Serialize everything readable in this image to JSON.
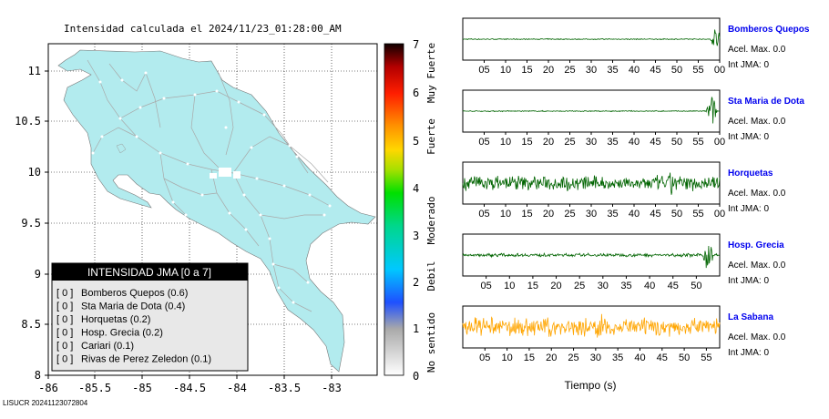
{
  "map": {
    "title": "Intensidad calculada el 2024/11/23_01:28:00_AM",
    "x_ticks": [
      "-86",
      "-85.5",
      "-85",
      "-84.5",
      "-84",
      "-83.5",
      "-83"
    ],
    "y_ticks": [
      "11",
      "10.5",
      "10",
      "9.5",
      "9",
      "8.5",
      "8"
    ],
    "land_color": "#b2ebee"
  },
  "colorbar": {
    "ticks": [
      "7",
      "6",
      "5",
      "4",
      "3",
      "2",
      "1",
      "0"
    ],
    "labels": [
      "Muy Fuerte",
      "Fuerte",
      "Moderado",
      "Debil",
      "No sentido"
    ]
  },
  "legend": {
    "title": "INTENSIDAD JMA [0 a 7]",
    "items": [
      {
        "level": "[ 0 ]",
        "name": "Bomberos Quepos (0.6)"
      },
      {
        "level": "[ 0 ]",
        "name": "Sta Maria de Dota (0.4)"
      },
      {
        "level": "[ 0 ]",
        "name": "Horquetas (0.2)"
      },
      {
        "level": "[ 0 ]",
        "name": "Hosp. Grecia (0.2)"
      },
      {
        "level": "[ 0 ]",
        "name": "Cariari (0.1)"
      },
      {
        "level": "[ 0 ]",
        "name": "Rivas de Perez Zeledon (0.1)"
      }
    ]
  },
  "chart_data": {
    "type": "line",
    "xlabel": "Tiempo (s)",
    "stations": [
      {
        "name": "Bomberos Quepos",
        "accel": "Acel. Max. 0.0",
        "jma": "Int JMA: 0",
        "color": "#006400",
        "x_ticks": [
          "05",
          "10",
          "15",
          "20",
          "25",
          "30",
          "35",
          "40",
          "45",
          "50",
          "55",
          "00"
        ],
        "x_max": 60,
        "amp": 0.03,
        "burst_at": 59.3,
        "burst_amp": 0.85
      },
      {
        "name": "Sta Maria de Dota",
        "accel": "Acel. Max. 0.0",
        "jma": "Int JMA: 0",
        "color": "#006400",
        "x_ticks": [
          "05",
          "10",
          "15",
          "20",
          "25",
          "30",
          "35",
          "40",
          "45",
          "50",
          "55",
          "00"
        ],
        "x_max": 60,
        "amp": 0.03,
        "burst_at": 58.2,
        "burst_amp": 0.9
      },
      {
        "name": "Horquetas",
        "accel": "Acel. Max. 0.0",
        "jma": "Int JMA: 0",
        "color": "#006400",
        "x_ticks": [
          "05",
          "10",
          "15",
          "20",
          "25",
          "30",
          "35",
          "40",
          "45",
          "50",
          "55",
          "00"
        ],
        "x_max": 60,
        "amp": 0.45,
        "burst_at": 49,
        "burst_amp": 0.9
      },
      {
        "name": "Hosp. Grecia",
        "accel": "Acel. Max. 0.0",
        "jma": "Int JMA: 0",
        "color": "#006400",
        "x_ticks": [
          "05",
          "10",
          "15",
          "20",
          "25",
          "30",
          "35",
          "40",
          "45",
          "50"
        ],
        "x_max": 55,
        "amp": 0.1,
        "burst_at": 52.5,
        "burst_amp": 0.9
      },
      {
        "name": "La Sabana",
        "accel": "Acel. Max. 0.0",
        "jma": "Int JMA: 0",
        "color": "#ffa500",
        "x_ticks": [
          "05",
          "10",
          "15",
          "20",
          "25",
          "30",
          "35",
          "40",
          "45",
          "50",
          "55"
        ],
        "x_max": 58,
        "amp": 0.55,
        "burst_at": 31,
        "burst_amp": 0.95
      }
    ]
  },
  "footer": {
    "text": "LISUCR 20241123072804"
  }
}
